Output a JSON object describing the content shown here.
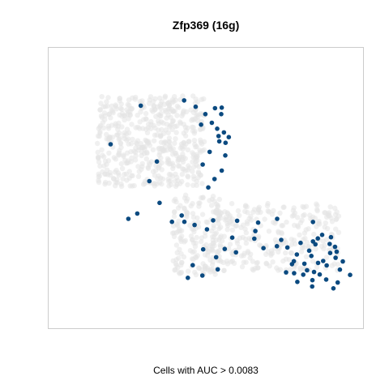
{
  "chart_data": {
    "type": "scatter",
    "title": "Zfp369 (16g)",
    "caption": "Cells with AUC > 0.0083",
    "xlim": [
      0,
      100
    ],
    "ylim": [
      0,
      100
    ],
    "axes_visible": false,
    "grid": false,
    "frame": true,
    "colors": {
      "background_cells": "#e3e3e3",
      "highlighted_cells": "#0b4a80"
    },
    "background_regions": [
      {
        "name": "upper-left lobe",
        "x_range": [
          6,
          46
        ],
        "y_range": [
          50,
          93
        ],
        "count": 520
      },
      {
        "name": "vertical stem",
        "x_range": [
          34,
          52
        ],
        "y_range": [
          8,
          46
        ],
        "count": 170
      },
      {
        "name": "lower-right band",
        "x_range": [
          48,
          96
        ],
        "y_range": [
          10,
          42
        ],
        "count": 290
      }
    ],
    "highlighted_points": [
      [
        22.2,
        88.3
      ],
      [
        38.3,
        90.8
      ],
      [
        42.6,
        87.8
      ],
      [
        46.2,
        84.3
      ],
      [
        49.8,
        87.1
      ],
      [
        52.3,
        87.4
      ],
      [
        52.1,
        84.3
      ],
      [
        44.6,
        79.3
      ],
      [
        48.6,
        80.2
      ],
      [
        50.6,
        77.4
      ],
      [
        53.1,
        75.6
      ],
      [
        51.1,
        73.9
      ],
      [
        54.9,
        73.4
      ],
      [
        51.4,
        71.4
      ],
      [
        53.7,
        70.7
      ],
      [
        47.8,
        66.4
      ],
      [
        45.2,
        60.4
      ],
      [
        53.6,
        64.7
      ],
      [
        52.3,
        57.5
      ],
      [
        49.6,
        53.5
      ],
      [
        47.3,
        49.5
      ],
      [
        11.0,
        70.0
      ],
      [
        28.2,
        61.8
      ],
      [
        25.4,
        52.5
      ],
      [
        29.2,
        42.2
      ],
      [
        20.9,
        37.1
      ],
      [
        17.6,
        34.6
      ],
      [
        33.8,
        33.2
      ],
      [
        37.4,
        36.2
      ],
      [
        38.4,
        33.2
      ],
      [
        42.2,
        31.7
      ],
      [
        49.1,
        33.9
      ],
      [
        46.8,
        29.6
      ],
      [
        58.0,
        33.7
      ],
      [
        65.8,
        32.8
      ],
      [
        72.9,
        34.6
      ],
      [
        64.8,
        28.8
      ],
      [
        64.4,
        25.2
      ],
      [
        56.2,
        25.7
      ],
      [
        53.4,
        20.3
      ],
      [
        50.2,
        16.4
      ],
      [
        50.8,
        10.6
      ],
      [
        45.4,
        20.1
      ],
      [
        41.5,
        12.6
      ],
      [
        39.7,
        6.6
      ],
      [
        45.1,
        7.7
      ],
      [
        57.6,
        18.7
      ],
      [
        67.8,
        20.7
      ],
      [
        72.8,
        21.6
      ],
      [
        74.4,
        24.6
      ],
      [
        79.1,
        14.5
      ],
      [
        83.0,
        13.3
      ],
      [
        84.0,
        10.2
      ],
      [
        86.6,
        9.4
      ],
      [
        88.7,
        8.2
      ],
      [
        91.1,
        5.8
      ],
      [
        88.1,
        13.7
      ],
      [
        90.0,
        14.6
      ],
      [
        85.6,
        17.0
      ],
      [
        80.2,
        17.7
      ],
      [
        81.6,
        23.2
      ],
      [
        84.8,
        19.5
      ],
      [
        87.1,
        22.5
      ],
      [
        89.6,
        27.0
      ],
      [
        92.4,
        22.7
      ],
      [
        94.4,
        21.3
      ],
      [
        92.6,
        18.4
      ],
      [
        94.6,
        16.1
      ],
      [
        91.3,
        12.5
      ],
      [
        96.2,
        10.5
      ],
      [
        95.4,
        4.4
      ],
      [
        86.0,
        5.5
      ],
      [
        93.8,
        1.6
      ],
      [
        100.0,
        8.0
      ],
      [
        97.3,
        14.4
      ],
      [
        82.6,
        8.1
      ],
      [
        79.2,
        8.8
      ],
      [
        78.4,
        13.1
      ],
      [
        80.4,
        4.7
      ],
      [
        85.9,
        2.5
      ],
      [
        88.0,
        25.3
      ],
      [
        86.2,
        23.9
      ],
      [
        86.2,
        33.1
      ],
      [
        92.9,
        25.9
      ],
      [
        95.0,
        19.0
      ],
      [
        76.2,
        9.2
      ],
      [
        76.7,
        21.0
      ]
    ]
  }
}
